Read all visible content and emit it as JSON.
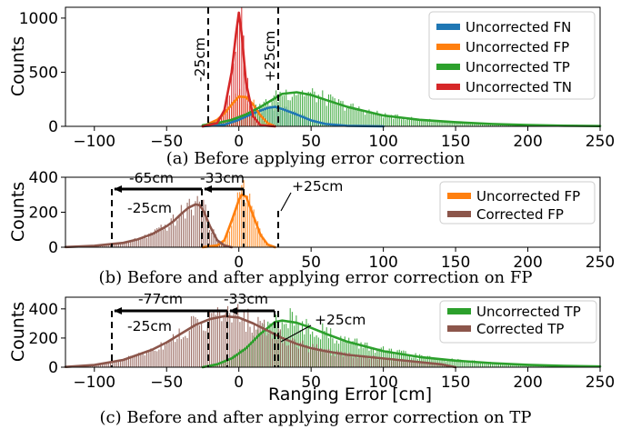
{
  "chart_data": [
    {
      "type": "histogram",
      "caption": "(a) Before applying error correction",
      "xlabel": "",
      "ylabel": "Counts",
      "xlim": [
        -120,
        250
      ],
      "ylim": [
        0,
        1100
      ],
      "xticks": [
        -100,
        -50,
        0,
        50,
        100,
        150,
        200,
        250
      ],
      "yticks": [
        0,
        500,
        1000
      ],
      "legend_position": "top-right",
      "series": [
        {
          "name": "Uncorrected FN",
          "color": "#1f77b4",
          "fit": [
            [
              -25,
              0
            ],
            [
              -10,
              15
            ],
            [
              0,
              60
            ],
            [
              10,
              120
            ],
            [
              20,
              170
            ],
            [
              25,
              180
            ],
            [
              30,
              160
            ],
            [
              40,
              110
            ],
            [
              50,
              55
            ],
            [
              60,
              22
            ],
            [
              75,
              5
            ],
            [
              100,
              0
            ]
          ]
        },
        {
          "name": "Uncorrected FP",
          "color": "#ff7f0e",
          "fit": [
            [
              -25,
              0
            ],
            [
              -15,
              60
            ],
            [
              -10,
              120
            ],
            [
              -5,
              200
            ],
            [
              0,
              275
            ],
            [
              5,
              270
            ],
            [
              10,
              200
            ],
            [
              15,
              100
            ],
            [
              20,
              30
            ],
            [
              25,
              0
            ]
          ]
        },
        {
          "name": "Uncorrected TP",
          "color": "#2ca02c",
          "fit": [
            [
              -25,
              10
            ],
            [
              -15,
              30
            ],
            [
              -5,
              60
            ],
            [
              5,
              110
            ],
            [
              15,
              180
            ],
            [
              25,
              260
            ],
            [
              30,
              300
            ],
            [
              40,
              315
            ],
            [
              50,
              290
            ],
            [
              60,
              245
            ],
            [
              75,
              180
            ],
            [
              100,
              100
            ],
            [
              125,
              60
            ],
            [
              150,
              38
            ],
            [
              175,
              22
            ],
            [
              200,
              12
            ],
            [
              225,
              6
            ],
            [
              250,
              3
            ]
          ]
        },
        {
          "name": "Uncorrected TN",
          "color": "#d62728",
          "fit": [
            [
              -25,
              0
            ],
            [
              -15,
              30
            ],
            [
              -10,
              150
            ],
            [
              -5,
              500
            ],
            [
              -2,
              850
            ],
            [
              0,
              1050
            ],
            [
              2,
              850
            ],
            [
              5,
              400
            ],
            [
              10,
              90
            ],
            [
              15,
              10
            ],
            [
              25,
              0
            ]
          ]
        }
      ],
      "annotations": [
        {
          "text": "-25cm",
          "x": -25
        },
        {
          "text": "+25cm",
          "x": 25
        }
      ]
    },
    {
      "type": "histogram",
      "caption": "(b) Before and after applying error correction on FP",
      "xlabel": "",
      "ylabel": "Counts",
      "xlim": [
        -120,
        250
      ],
      "ylim": [
        0,
        400
      ],
      "xticks": [
        0,
        50,
        100,
        150,
        200,
        250
      ],
      "yticks": [
        0,
        200,
        400
      ],
      "legend_position": "top-right",
      "series": [
        {
          "name": "Uncorrected FP",
          "color": "#ff7f0e",
          "fit": [
            [
              -25,
              0
            ],
            [
              -15,
              10
            ],
            [
              -10,
              40
            ],
            [
              -5,
              150
            ],
            [
              0,
              270
            ],
            [
              2,
              300
            ],
            [
              5,
              290
            ],
            [
              10,
              180
            ],
            [
              15,
              70
            ],
            [
              20,
              15
            ],
            [
              25,
              0
            ]
          ]
        },
        {
          "name": "Corrected FP",
          "color": "#8c564b",
          "fit": [
            [
              -120,
              1
            ],
            [
              -100,
              8
            ],
            [
              -80,
              25
            ],
            [
              -70,
              45
            ],
            [
              -60,
              75
            ],
            [
              -50,
              120
            ],
            [
              -45,
              150
            ],
            [
              -40,
              190
            ],
            [
              -35,
              225
            ],
            [
              -30,
              245
            ],
            [
              -27,
              240
            ],
            [
              -24,
              200
            ],
            [
              -20,
              120
            ],
            [
              -15,
              40
            ],
            [
              -10,
              10
            ],
            [
              -5,
              0
            ]
          ]
        }
      ],
      "annotations": [
        {
          "text": "-65cm",
          "x": -95
        },
        {
          "text": "-33cm",
          "x": -30
        },
        {
          "text": "-25cm",
          "x": -25
        },
        {
          "text": "+25cm",
          "x": 25
        }
      ]
    },
    {
      "type": "histogram",
      "caption": "(c) Before and after applying error correction on TP",
      "xlabel": "Ranging Error [cm]",
      "ylabel": "Counts",
      "xlim": [
        -120,
        250
      ],
      "ylim": [
        0,
        480
      ],
      "xticks": [
        -100,
        -50,
        0,
        50,
        100,
        150,
        200,
        250
      ],
      "yticks": [
        0,
        200,
        400
      ],
      "legend_position": "top-right",
      "series": [
        {
          "name": "Uncorrected TP",
          "color": "#2ca02c",
          "fit": [
            [
              -25,
              0
            ],
            [
              -15,
              20
            ],
            [
              -5,
              60
            ],
            [
              5,
              130
            ],
            [
              15,
              230
            ],
            [
              25,
              310
            ],
            [
              30,
              320
            ],
            [
              40,
              305
            ],
            [
              50,
              270
            ],
            [
              60,
              230
            ],
            [
              75,
              175
            ],
            [
              100,
              110
            ],
            [
              125,
              70
            ],
            [
              150,
              45
            ],
            [
              175,
              28
            ],
            [
              200,
              16
            ],
            [
              225,
              9
            ],
            [
              250,
              5
            ]
          ]
        },
        {
          "name": "Corrected TP",
          "color": "#8c564b",
          "fit": [
            [
              -120,
              2
            ],
            [
              -100,
              15
            ],
            [
              -80,
              50
            ],
            [
              -60,
              120
            ],
            [
              -50,
              170
            ],
            [
              -40,
              230
            ],
            [
              -30,
              290
            ],
            [
              -20,
              330
            ],
            [
              -10,
              350
            ],
            [
              0,
              340
            ],
            [
              10,
              300
            ],
            [
              20,
              250
            ],
            [
              30,
              200
            ],
            [
              40,
              160
            ],
            [
              50,
              130
            ],
            [
              60,
              110
            ],
            [
              75,
              85
            ],
            [
              100,
              60
            ],
            [
              125,
              35
            ],
            [
              140,
              20
            ],
            [
              150,
              0
            ]
          ]
        }
      ],
      "annotations": [
        {
          "text": "-77cm",
          "x": -95
        },
        {
          "text": "-33cm",
          "x": -8
        },
        {
          "text": "-25cm",
          "x": -25
        },
        {
          "text": "+25cm",
          "x": 25
        }
      ]
    }
  ]
}
